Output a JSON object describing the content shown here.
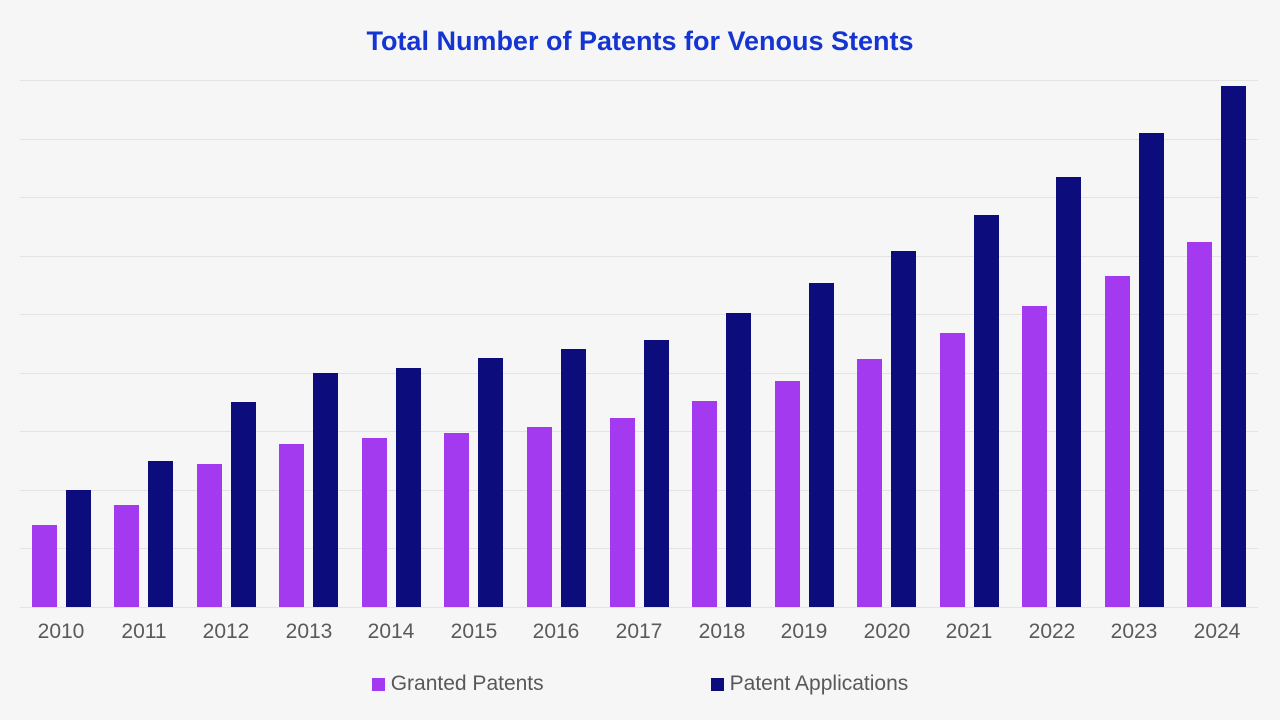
{
  "page": {
    "background_color": "#f6f6f6",
    "title_color": "#1535d2",
    "gridline_color": "#e3e3e3",
    "tick_label_color": "#5a5a5a",
    "legend_label_color": "#58585a"
  },
  "chart_data": {
    "type": "bar",
    "title": "Total Number of Patents for Venous Stents",
    "xlabel": "",
    "ylabel": "",
    "categories": [
      "2010",
      "2011",
      "2012",
      "2013",
      "2014",
      "2015",
      "2016",
      "2017",
      "2018",
      "2019",
      "2020",
      "2021",
      "2022",
      "2023",
      "2024"
    ],
    "series": [
      {
        "name": "Granted Patents",
        "color": "#a43af0",
        "values": [
          70,
          87,
          122,
          139,
          144,
          149,
          154,
          161,
          176,
          193,
          212,
          234,
          257,
          283,
          312
        ]
      },
      {
        "name": "Patent Applications",
        "color": "#0c0c7d",
        "values": [
          100,
          125,
          175,
          200,
          204,
          213,
          220,
          228,
          251,
          277,
          304,
          335,
          367,
          405,
          445
        ]
      }
    ],
    "ylim": [
      0,
      450
    ],
    "gridline_step": 50,
    "grid": "horizontal-only",
    "y_axis_labels_visible": false,
    "legend_position": "bottom"
  }
}
